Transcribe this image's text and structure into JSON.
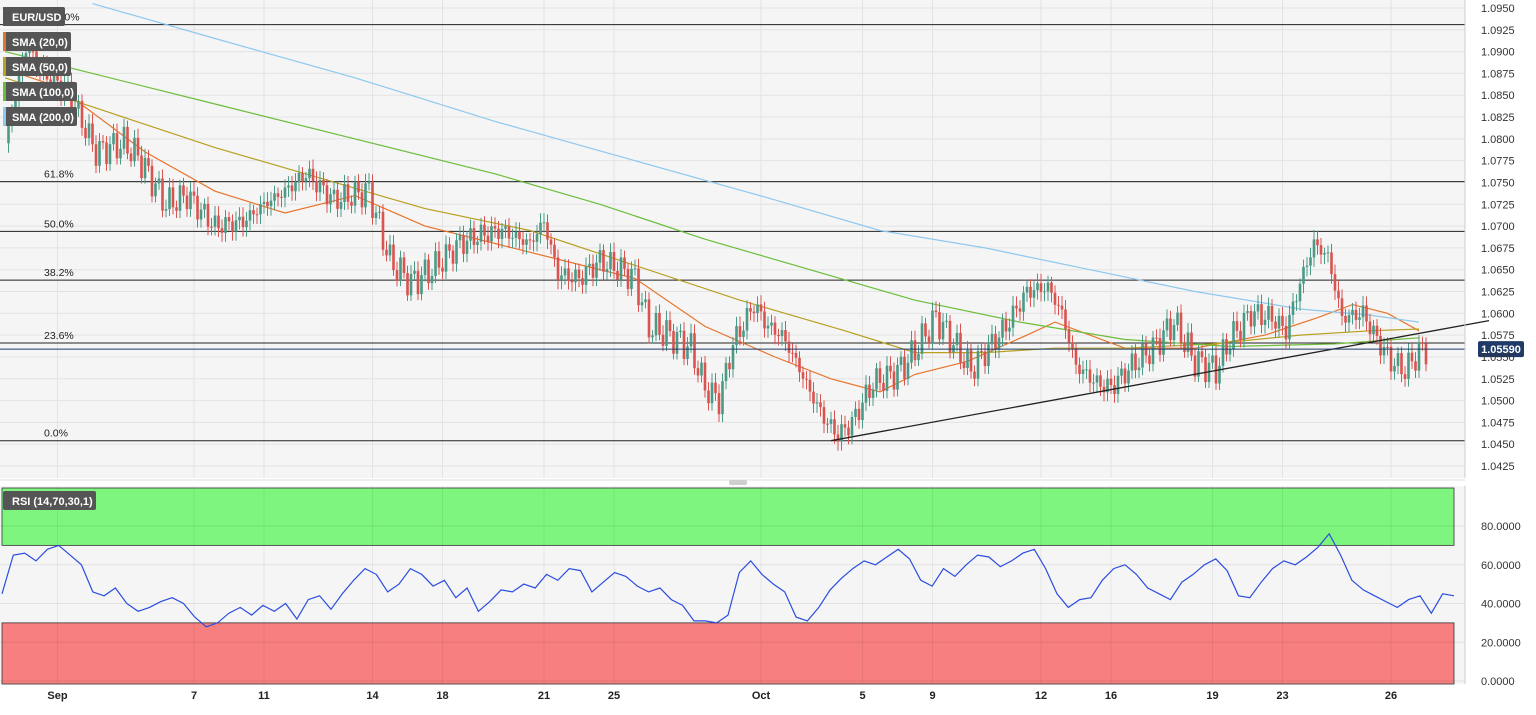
{
  "chart_data": [
    {
      "type": "candlestick",
      "symbol": "EUR/USD",
      "indicators": [
        {
          "name": "SMA (20,0)",
          "color": "#e8742a"
        },
        {
          "name": "SMA (50,0)",
          "color": "#b8a021"
        },
        {
          "name": "SMA (100,0)",
          "color": "#6cbd3a"
        },
        {
          "name": "SMA (200,0)",
          "color": "#8fc8ef"
        }
      ],
      "ylim": [
        1.041,
        1.096
      ],
      "y_ticks": [
        "1.0950",
        "1.0925",
        "1.0900",
        "1.0875",
        "1.0850",
        "1.0825",
        "1.0800",
        "1.0775",
        "1.0750",
        "1.0725",
        "1.0700",
        "1.0675",
        "1.0650",
        "1.0625",
        "1.0600",
        "1.0575",
        "1.0550",
        "1.0525",
        "1.0500",
        "1.0475",
        "1.0450",
        "1.0425"
      ],
      "x_ticks": [
        {
          "label": "Sep",
          "index": 15
        },
        {
          "label": "7",
          "index": 54
        },
        {
          "label": "11",
          "index": 74
        },
        {
          "label": "14",
          "index": 105
        },
        {
          "label": "18",
          "index": 125
        },
        {
          "label": "21",
          "index": 154
        },
        {
          "label": "25",
          "index": 174
        },
        {
          "label": "Oct",
          "index": 216
        },
        {
          "label": "5",
          "index": 245
        },
        {
          "label": "9",
          "index": 265
        },
        {
          "label": "12",
          "index": 296
        },
        {
          "label": "16",
          "index": 316
        },
        {
          "label": "19",
          "index": 345
        },
        {
          "label": "23",
          "index": 365
        },
        {
          "label": "26",
          "index": 396
        }
      ],
      "last_price": "1.05590",
      "last_price_value": 1.0559,
      "fib_levels": [
        {
          "label": "0.0%",
          "value": 1.0454
        },
        {
          "label": "23.6%",
          "value": 1.0566
        },
        {
          "label": "38.2%",
          "value": 1.0638
        },
        {
          "label": "50.0%",
          "value": 1.0694
        },
        {
          "label": "61.8%",
          "value": 1.0751
        },
        {
          "label": "100.0%",
          "value": 1.0931
        }
      ],
      "trendline": [
        [
          236,
          1.0454
        ],
        [
          404,
          1.0577
        ]
      ],
      "colors": {
        "up": "#4a9a86",
        "down": "#d9534f",
        "fib": "#222222",
        "trend": "#222222",
        "last_price_line": "#1f3a66",
        "badge": "#555555"
      },
      "grid": true,
      "ohlc_close_path": [
        [
          0,
          1.0795
        ],
        [
          6,
          1.0905
        ],
        [
          12,
          1.087
        ],
        [
          18,
          1.0855
        ],
        [
          26,
          1.0785
        ],
        [
          34,
          1.0795
        ],
        [
          38,
          1.078
        ],
        [
          46,
          1.0725
        ],
        [
          52,
          1.0735
        ],
        [
          60,
          1.07
        ],
        [
          68,
          1.0705
        ],
        [
          74,
          1.0725
        ],
        [
          80,
          1.074
        ],
        [
          86,
          1.076
        ],
        [
          94,
          1.073
        ],
        [
          104,
          1.074
        ],
        [
          110,
          1.066
        ],
        [
          116,
          1.0635
        ],
        [
          122,
          1.065
        ],
        [
          130,
          1.068
        ],
        [
          136,
          1.069
        ],
        [
          142,
          1.0695
        ],
        [
          150,
          1.068
        ],
        [
          154,
          1.0705
        ],
        [
          158,
          1.0645
        ],
        [
          164,
          1.064
        ],
        [
          170,
          1.066
        ],
        [
          176,
          1.065
        ],
        [
          180,
          1.064
        ],
        [
          184,
          1.0585
        ],
        [
          190,
          1.0575
        ],
        [
          196,
          1.056
        ],
        [
          200,
          1.0515
        ],
        [
          204,
          1.05
        ],
        [
          208,
          1.0565
        ],
        [
          214,
          1.061
        ],
        [
          218,
          1.0585
        ],
        [
          222,
          1.0575
        ],
        [
          226,
          1.0545
        ],
        [
          230,
          1.051
        ],
        [
          234,
          1.048
        ],
        [
          238,
          1.046
        ],
        [
          242,
          1.0475
        ],
        [
          248,
          1.052
        ],
        [
          254,
          1.053
        ],
        [
          258,
          1.0545
        ],
        [
          262,
          1.057
        ],
        [
          266,
          1.0595
        ],
        [
          272,
          1.056
        ],
        [
          276,
          1.0535
        ],
        [
          280,
          1.0555
        ],
        [
          286,
          1.0585
        ],
        [
          292,
          1.0625
        ],
        [
          298,
          1.063
        ],
        [
          302,
          1.06
        ],
        [
          306,
          1.054
        ],
        [
          312,
          1.052
        ],
        [
          316,
          1.0515
        ],
        [
          322,
          1.054
        ],
        [
          328,
          1.056
        ],
        [
          334,
          1.059
        ],
        [
          340,
          1.0545
        ],
        [
          346,
          1.0535
        ],
        [
          350,
          1.057
        ],
        [
          356,
          1.06
        ],
        [
          362,
          1.0595
        ],
        [
          366,
          1.058
        ],
        [
          370,
          1.0635
        ],
        [
          374,
          1.068
        ],
        [
          378,
          1.0665
        ],
        [
          382,
          1.0595
        ],
        [
          388,
          1.06
        ],
        [
          392,
          1.057
        ],
        [
          396,
          1.0545
        ],
        [
          400,
          1.0535
        ],
        [
          404,
          1.0555
        ],
        [
          406,
          1.0559
        ]
      ],
      "sma_series": [
        {
          "name": "SMA (20,0)",
          "color": "#e8742a",
          "points": [
            [
              0,
              1.088
            ],
            [
              15,
              1.086
            ],
            [
              40,
              1.0785
            ],
            [
              60,
              1.074
            ],
            [
              80,
              1.0715
            ],
            [
              100,
              1.0735
            ],
            [
              120,
              1.07
            ],
            [
              140,
              1.068
            ],
            [
              160,
              1.066
            ],
            [
              180,
              1.064
            ],
            [
              200,
              1.0585
            ],
            [
              220,
              1.055
            ],
            [
              236,
              1.0525
            ],
            [
              250,
              1.051
            ],
            [
              260,
              1.053
            ],
            [
              275,
              1.0545
            ],
            [
              292,
              1.0575
            ],
            [
              300,
              1.059
            ],
            [
              320,
              1.056
            ],
            [
              340,
              1.056
            ],
            [
              360,
              1.0575
            ],
            [
              375,
              1.0595
            ],
            [
              385,
              1.061
            ],
            [
              395,
              1.06
            ],
            [
              404,
              1.058
            ]
          ]
        },
        {
          "name": "SMA (50,0)",
          "color": "#b8a021",
          "points": [
            [
              0,
              1.087
            ],
            [
              30,
              1.083
            ],
            [
              60,
              1.079
            ],
            [
              90,
              1.0755
            ],
            [
              120,
              1.072
            ],
            [
              150,
              1.0695
            ],
            [
              180,
              1.0655
            ],
            [
              210,
              1.0615
            ],
            [
              240,
              1.058
            ],
            [
              260,
              1.0555
            ],
            [
              280,
              1.0555
            ],
            [
              300,
              1.056
            ],
            [
              320,
              1.056
            ],
            [
              345,
              1.0565
            ],
            [
              370,
              1.0575
            ],
            [
              390,
              1.058
            ],
            [
              404,
              1.0582
            ]
          ]
        },
        {
          "name": "SMA (100,0)",
          "color": "#6cbd3a",
          "points": [
            [
              0,
              1.09
            ],
            [
              20,
              1.088
            ],
            [
              60,
              1.084
            ],
            [
              100,
              1.08
            ],
            [
              140,
              1.076
            ],
            [
              170,
              1.0725
            ],
            [
              200,
              1.0685
            ],
            [
              230,
              1.065
            ],
            [
              260,
              1.0615
            ],
            [
              290,
              1.059
            ],
            [
              320,
              1.057
            ],
            [
              350,
              1.0562
            ],
            [
              380,
              1.0565
            ],
            [
              404,
              1.0572
            ]
          ]
        },
        {
          "name": "SMA (200,0)",
          "color": "#8fc8ef",
          "points": [
            [
              25,
              1.0955
            ],
            [
              60,
              1.0915
            ],
            [
              100,
              1.087
            ],
            [
              140,
              1.082
            ],
            [
              180,
              1.0775
            ],
            [
              220,
              1.073
            ],
            [
              250,
              1.0695
            ],
            [
              280,
              1.0675
            ],
            [
              310,
              1.065
            ],
            [
              340,
              1.0625
            ],
            [
              370,
              1.0605
            ],
            [
              390,
              1.0598
            ],
            [
              404,
              1.059
            ]
          ]
        }
      ]
    },
    {
      "type": "line",
      "title": "RSI (14,70,30,1)",
      "ylim": [
        0,
        100
      ],
      "y_ticks": [
        "80.0000",
        "60.0000",
        "40.0000",
        "20.0000",
        "0.0000"
      ],
      "overbought": 70,
      "oversold": 30,
      "colors": {
        "line": "#2b4de0",
        "overbought": "#7ef57e",
        "oversold": "#f77f7f"
      },
      "series": [
        {
          "values": [
            45,
            65,
            66,
            62,
            68,
            70,
            65,
            60,
            46,
            44,
            48,
            40,
            36,
            38,
            41,
            43,
            40,
            33,
            28,
            30,
            35,
            38,
            34,
            39,
            36,
            40,
            32,
            42,
            44,
            37,
            45,
            52,
            58,
            55,
            46,
            50,
            58,
            55,
            49,
            52,
            43,
            48,
            36,
            41,
            47,
            46,
            50,
            48,
            55,
            52,
            58,
            57,
            46,
            51,
            56,
            54,
            49,
            46,
            48,
            42,
            39,
            31,
            31,
            30,
            34,
            56,
            62,
            55,
            50,
            46,
            33,
            31,
            38,
            47,
            53,
            58,
            62,
            60,
            64,
            68,
            63,
            52,
            49,
            58,
            54,
            60,
            65,
            64,
            59,
            62,
            66,
            68,
            58,
            45,
            38,
            42,
            43,
            52,
            58,
            60,
            55,
            48,
            45,
            42,
            51,
            55,
            60,
            63,
            57,
            44,
            43,
            51,
            58,
            62,
            60,
            64,
            69,
            76,
            65,
            52,
            47,
            44,
            41,
            38,
            42,
            44,
            35,
            45,
            44
          ]
        }
      ]
    }
  ]
}
